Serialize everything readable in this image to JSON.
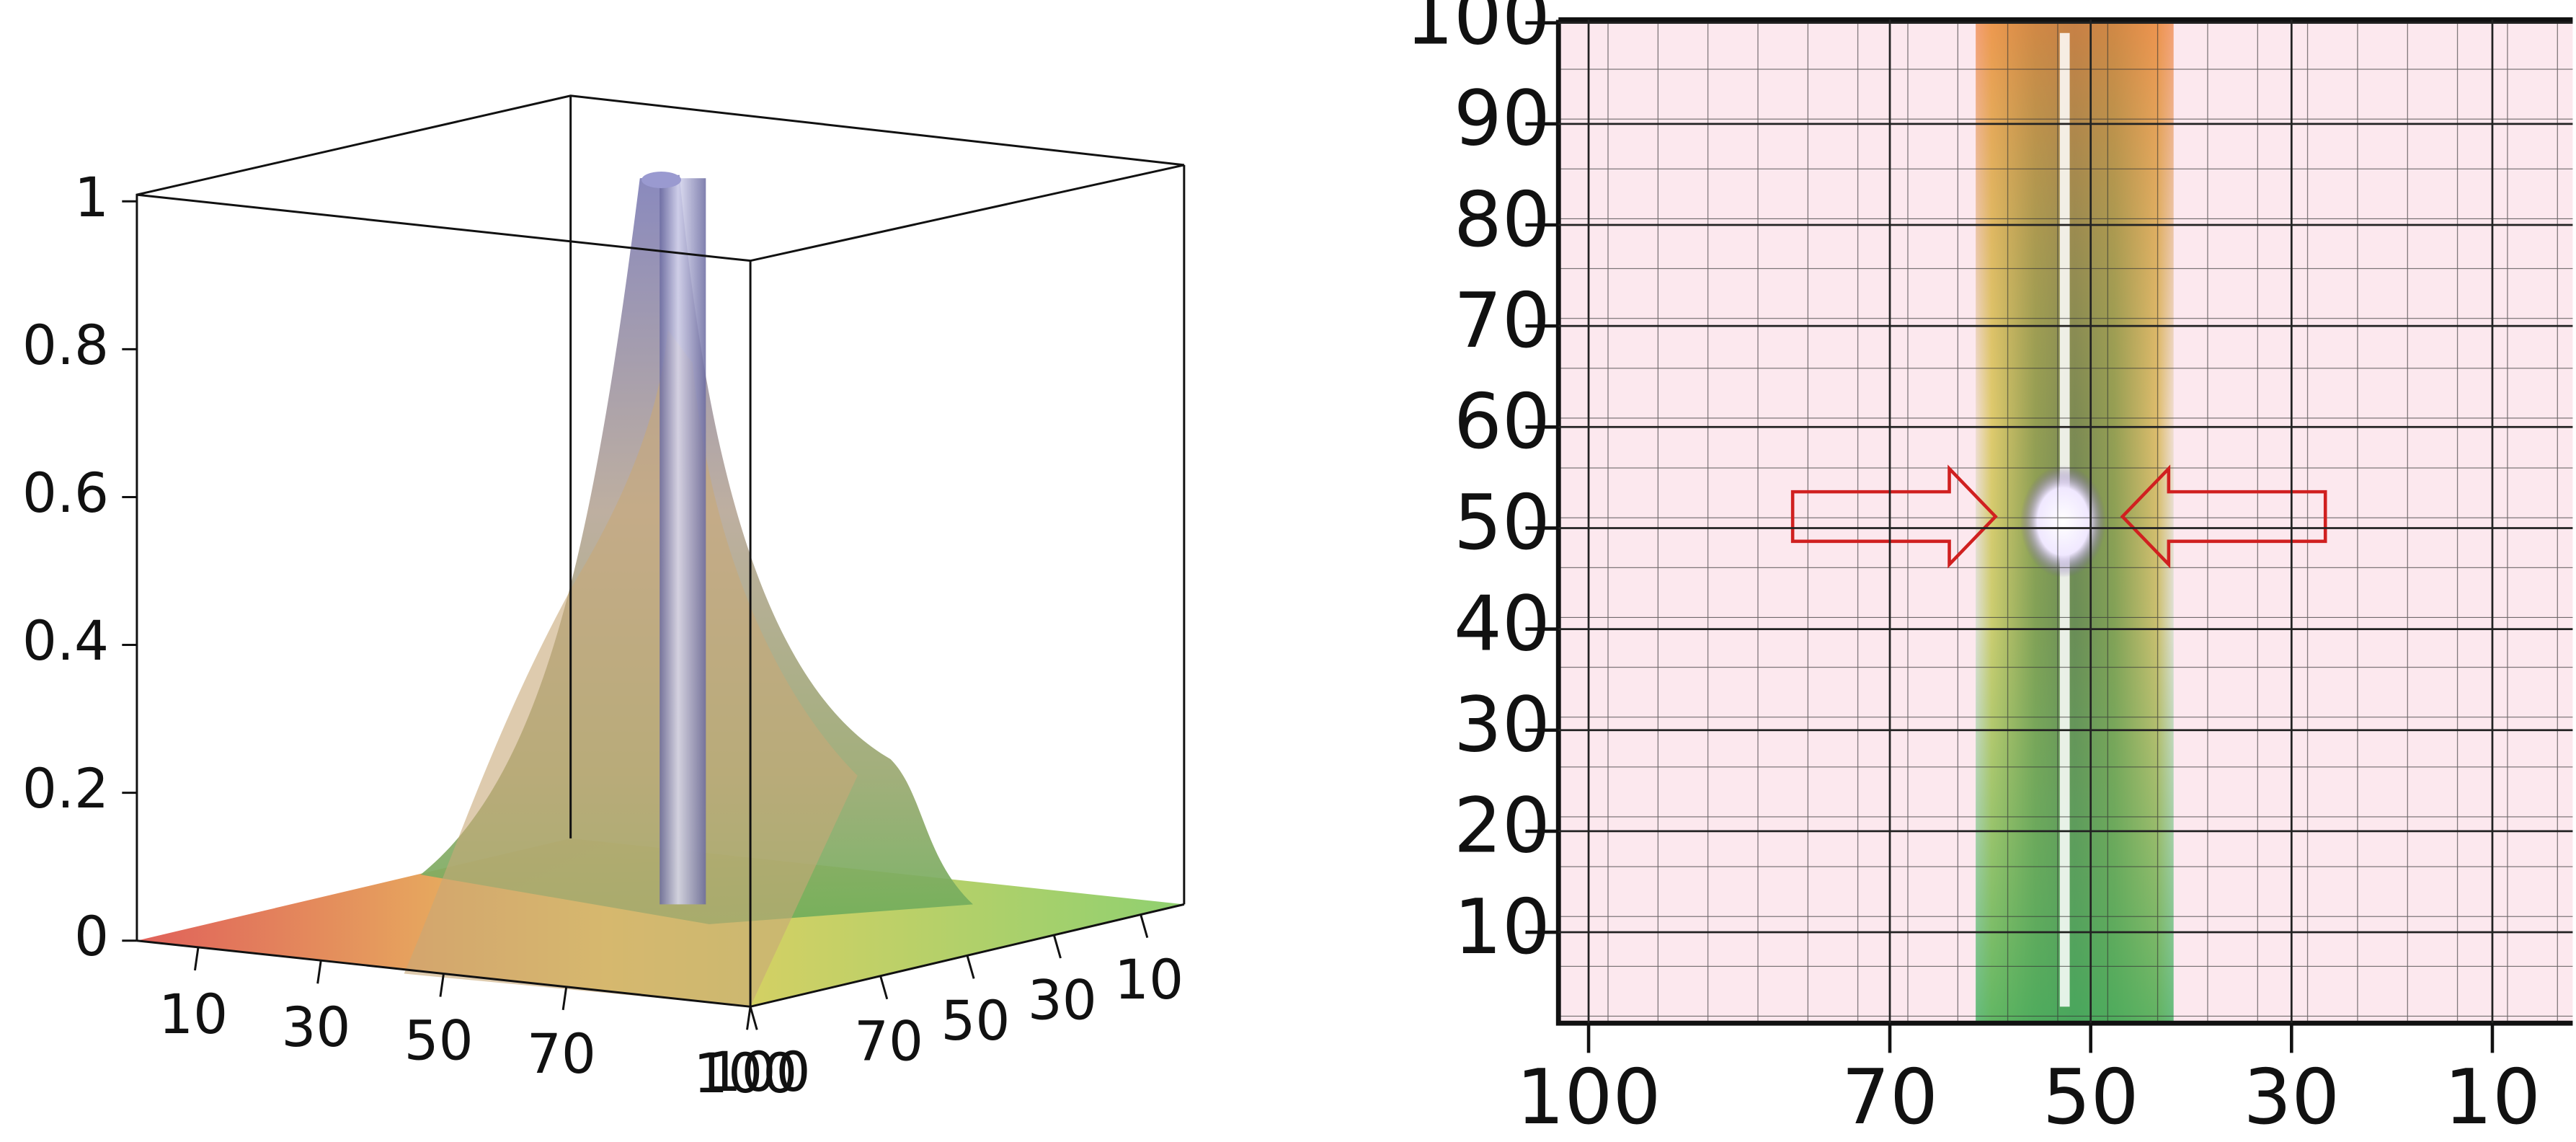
{
  "chart_data": [
    {
      "type": "surface",
      "xlim": [
        0,
        100
      ],
      "xticks": [
        10,
        30,
        50,
        70,
        100
      ],
      "ylim": [
        0,
        100
      ],
      "yticks": [
        10,
        30,
        50,
        70,
        100
      ],
      "zlim": [
        0,
        1
      ],
      "zticks": [
        0,
        0.2,
        0.4,
        0.6,
        0.8,
        1
      ]
    },
    {
      "type": "heatmap",
      "xlim": [
        103,
        2
      ],
      "xticks": [
        100,
        70,
        50,
        30,
        10
      ],
      "ylim": [
        1,
        100.3
      ],
      "yticks": [
        10,
        20,
        30,
        40,
        50,
        60,
        70,
        80,
        90,
        100
      ],
      "grid": true
    }
  ]
}
